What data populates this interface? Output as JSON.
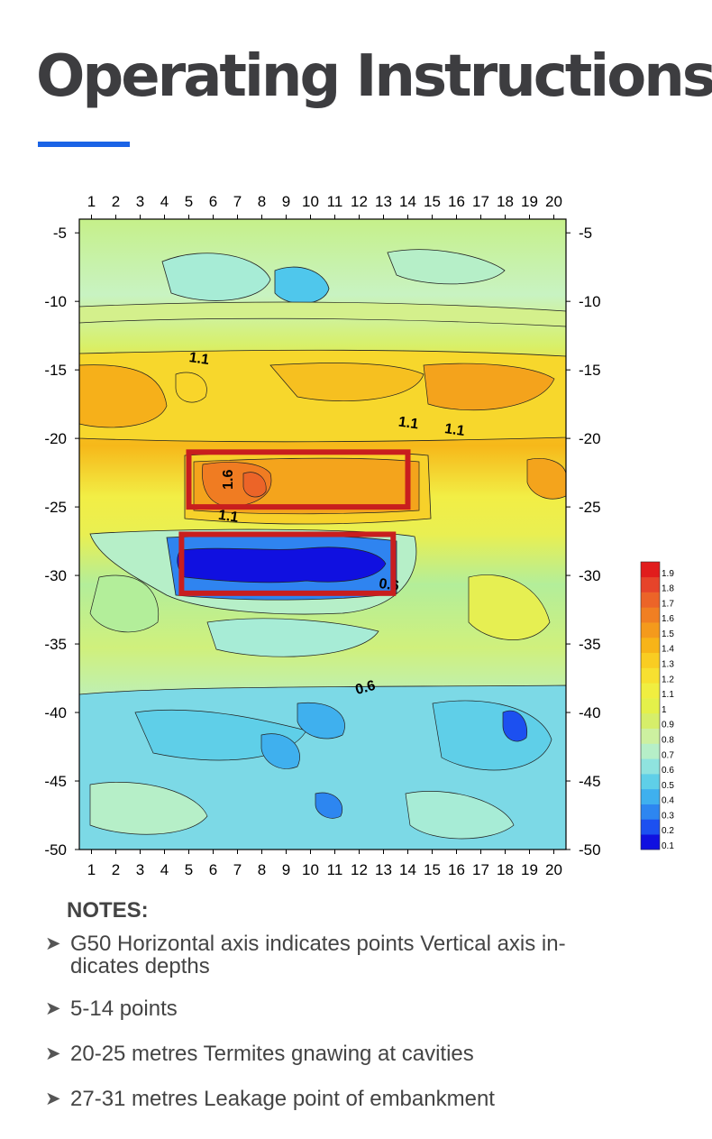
{
  "page": {
    "title": "Operating Instructions",
    "accent_color": "#1a63e6"
  },
  "chart_data": {
    "type": "heatmap",
    "title": "",
    "xlabel": "",
    "ylabel": "",
    "x_ticks": [
      1,
      2,
      3,
      4,
      5,
      6,
      7,
      8,
      9,
      10,
      11,
      12,
      13,
      14,
      15,
      16,
      17,
      18,
      19,
      20
    ],
    "y_ticks": [
      -5,
      -10,
      -15,
      -20,
      -25,
      -30,
      -35,
      -40,
      -45,
      -50
    ],
    "xlim": [
      1,
      20
    ],
    "ylim": [
      -50,
      -4
    ],
    "grid": false,
    "colorbar": {
      "position": "right",
      "levels": [
        0.1,
        0.2,
        0.3,
        0.4,
        0.5,
        0.6,
        0.7,
        0.8,
        0.9,
        1,
        1.1,
        1.2,
        1.3,
        1.4,
        1.5,
        1.6,
        1.7,
        1.8,
        1.9
      ],
      "level_labels": [
        "0.1",
        "0.2",
        "0.3",
        "0.4",
        "0.5",
        "0.6",
        "0.7",
        "0.8",
        "0.9",
        "1",
        "1.1",
        "1.2",
        "1.3",
        "1.4",
        "1.5",
        "1.6",
        "1.7",
        "1.8",
        "1.9"
      ],
      "colors": [
        "#1010e0",
        "#1c50f0",
        "#2d86f0",
        "#3fb0ee",
        "#5fcfe8",
        "#8fe3df",
        "#b6efc8",
        "#cdf0a0",
        "#d6ee6a",
        "#e4f04a",
        "#f0ee40",
        "#f7e030",
        "#f9cd22",
        "#f7b418",
        "#f49a1c",
        "#f07f22",
        "#ec6428",
        "#e6442a",
        "#e11c1c"
      ]
    },
    "contour_labels": [
      {
        "text": "1.1",
        "x": 5.4,
        "y": -14.5
      },
      {
        "text": "1.1",
        "x": 14.0,
        "y": -19.2
      },
      {
        "text": "1.1",
        "x": 15.9,
        "y": -19.7
      },
      {
        "text": "1.6",
        "x": 6.8,
        "y": -23.0
      },
      {
        "text": "1.1",
        "x": 6.6,
        "y": -26.0
      },
      {
        "text": "0.6",
        "x": 13.2,
        "y": -31.0
      },
      {
        "text": "0.6",
        "x": 12.3,
        "y": -38.5
      }
    ],
    "highlight_regions": [
      {
        "label": "20-25 metres",
        "x_range": [
          5,
          14
        ],
        "y_range": [
          -21,
          -25
        ],
        "color": "#c81e1e"
      },
      {
        "label": "27-31 metres",
        "x_range": [
          4.7,
          13.4
        ],
        "y_range": [
          -27,
          -31.3
        ],
        "color": "#c81e1e"
      }
    ],
    "bands": [
      {
        "y_range": [
          -4,
          -12
        ],
        "level": 0.7
      },
      {
        "y_range": [
          -12,
          -20
        ],
        "level": 1.2
      },
      {
        "y_range": [
          -20,
          -26
        ],
        "level": 1.1
      },
      {
        "y_range": [
          -26,
          -38
        ],
        "level": 0.8
      },
      {
        "y_range": [
          -38,
          -50
        ],
        "level": 0.5
      }
    ]
  },
  "notes": {
    "heading": "NOTES:",
    "items": [
      "G50 Horizontal axis indicates points Vertical axis in-\ndicates depths",
      "5-14 points",
      "20-25 metres Termites gnawing at cavities",
      "27-31 metres Leakage point of embankment"
    ]
  }
}
